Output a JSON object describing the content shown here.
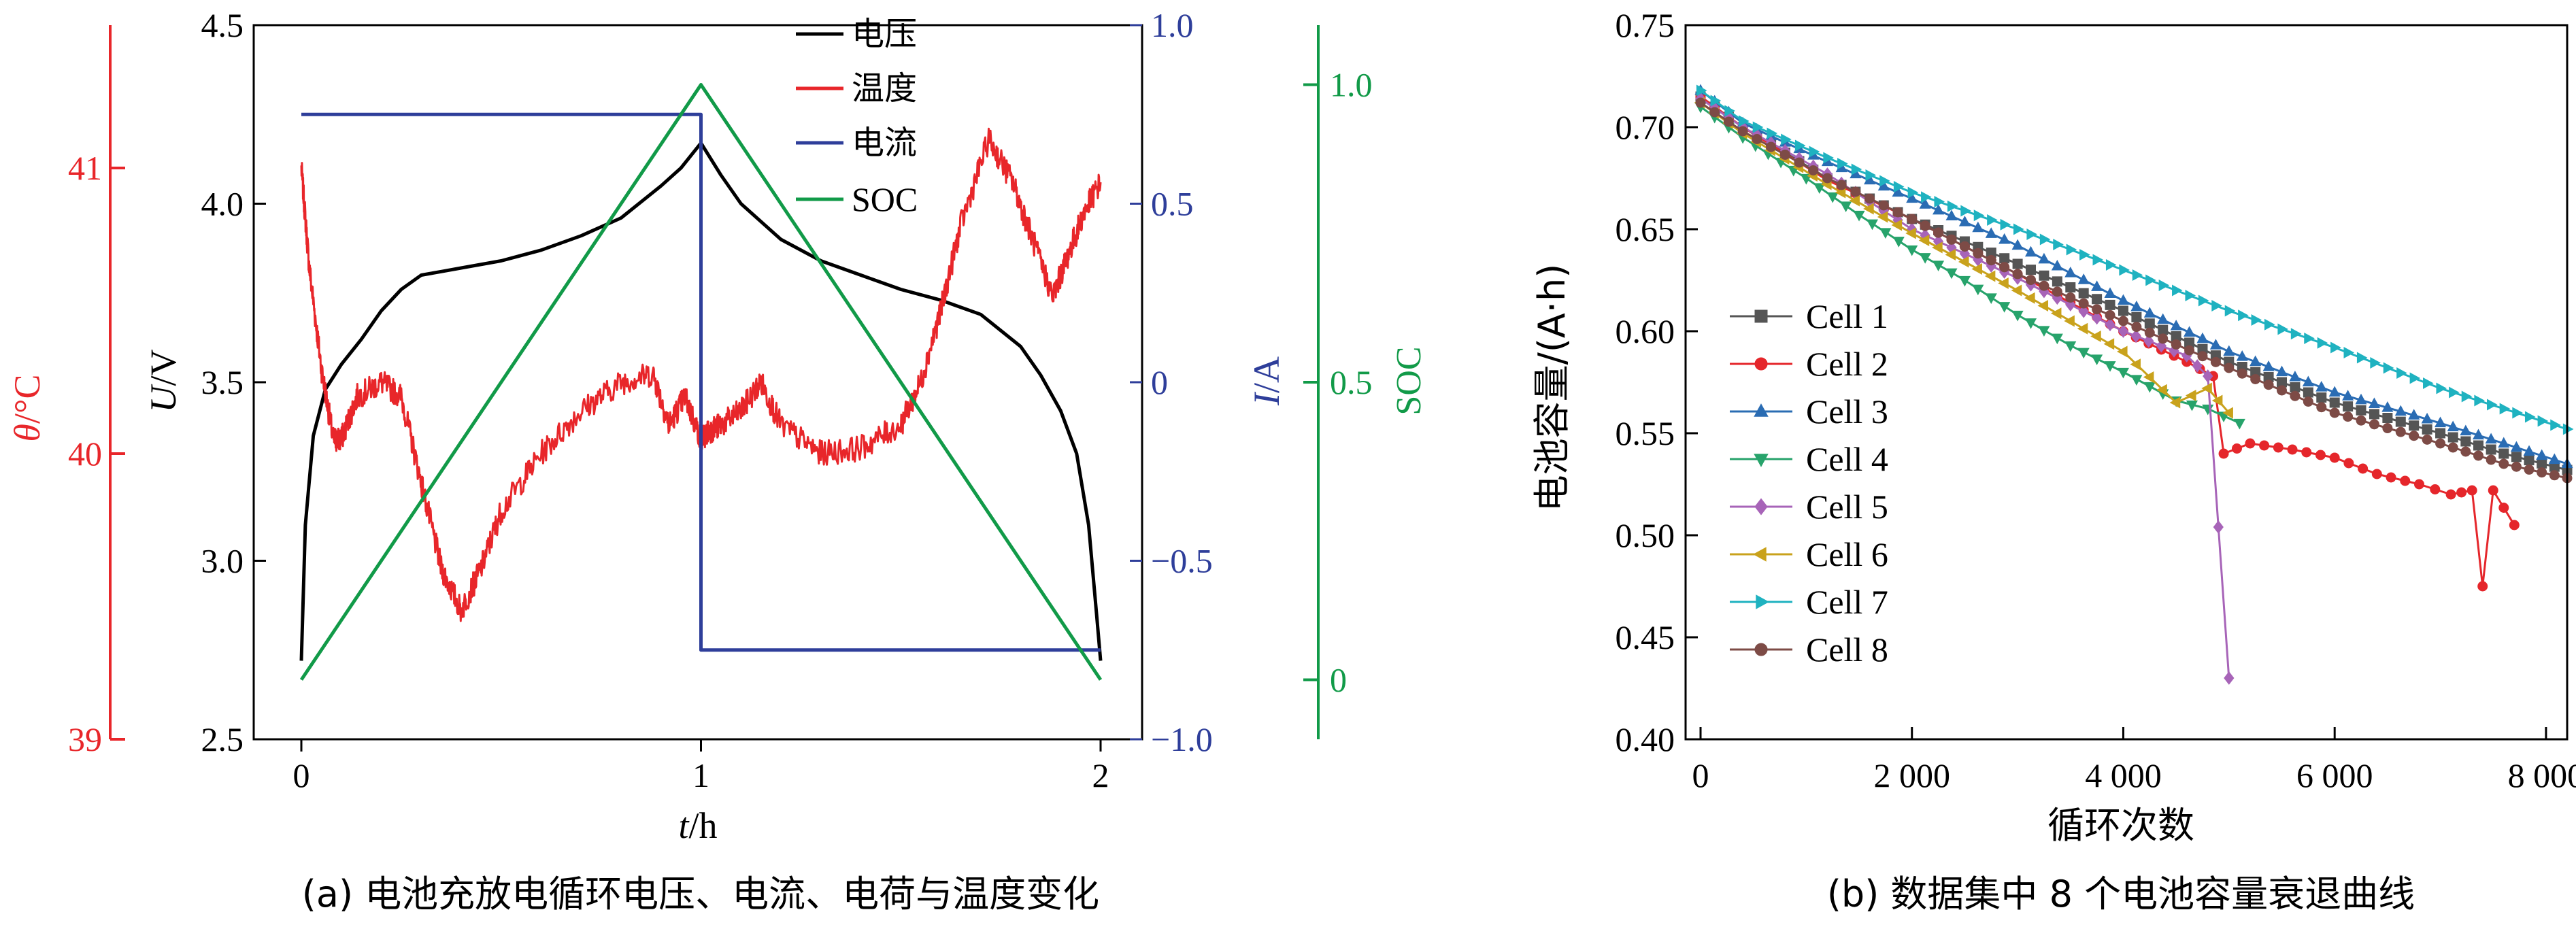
{
  "colors": {
    "voltage": "#000000",
    "temperature": "#e8262a",
    "current": "#2e3e9a",
    "soc": "#119a48",
    "cells": [
      "#555555",
      "#e5262b",
      "#2a6cb3",
      "#27a36b",
      "#a764b8",
      "#c9a21c",
      "#1fb2c0",
      "#7d4b46"
    ]
  },
  "panel_a": {
    "caption": "(a) 电池充放电循环电压、电流、电荷与温度变化",
    "xlabel_var": "t",
    "xlabel_unit": "/h",
    "x_ticks": [
      "0",
      "1",
      "2"
    ],
    "temp_axis": {
      "var": "θ",
      "unit": "/°C",
      "ticks": [
        "39",
        "40",
        "41"
      ]
    },
    "volt_axis": {
      "var": "U",
      "unit": "/V",
      "ticks": [
        "2.5",
        "3.0",
        "3.5",
        "4.0",
        "4.5"
      ]
    },
    "curr_axis": {
      "var": "I",
      "unit": "/A",
      "ticks": [
        "−1.0",
        "−0.5",
        "0",
        "0.5",
        "1.0"
      ]
    },
    "soc_axis": {
      "label": "SOC",
      "ticks": [
        "0",
        "0.5",
        "1.0"
      ]
    },
    "legend": [
      "电压",
      "温度",
      "电流",
      "SOC"
    ]
  },
  "panel_b": {
    "caption": "(b) 数据集中 8 个电池容量衰退曲线",
    "xlabel": "循环次数",
    "ylabel": "电池容量/(A·h)",
    "x_ticks": [
      "0",
      "2 000",
      "4 000",
      "6 000",
      "8 000"
    ],
    "y_ticks": [
      "0.40",
      "0.45",
      "0.50",
      "0.55",
      "0.60",
      "0.65",
      "0.70",
      "0.75"
    ]
  },
  "chart_data": [
    {
      "type": "line",
      "x_range": [
        0,
        2
      ],
      "series": [
        {
          "name": "电压",
          "axis": "U/V",
          "ylim": [
            2.5,
            4.5
          ],
          "x": [
            0,
            0.01,
            0.03,
            0.06,
            0.1,
            0.15,
            0.2,
            0.25,
            0.3,
            0.35,
            0.4,
            0.5,
            0.6,
            0.7,
            0.8,
            0.9,
            0.95,
            1.0,
            1.05,
            1.1,
            1.2,
            1.3,
            1.4,
            1.5,
            1.6,
            1.7,
            1.8,
            1.85,
            1.9,
            1.94,
            1.97,
            1.99,
            2.0
          ],
          "values": [
            2.72,
            3.1,
            3.35,
            3.48,
            3.55,
            3.62,
            3.7,
            3.76,
            3.8,
            3.81,
            3.82,
            3.84,
            3.87,
            3.91,
            3.96,
            4.05,
            4.1,
            4.17,
            4.08,
            4.0,
            3.9,
            3.84,
            3.8,
            3.76,
            3.73,
            3.69,
            3.6,
            3.52,
            3.42,
            3.3,
            3.1,
            2.85,
            2.72
          ]
        },
        {
          "name": "温度",
          "axis": "θ/°C",
          "ylim": [
            39,
            41.5
          ],
          "x": [
            0,
            0.02,
            0.05,
            0.08,
            0.1,
            0.14,
            0.2,
            0.25,
            0.3,
            0.35,
            0.4,
            0.45,
            0.5,
            0.6,
            0.7,
            0.8,
            0.88,
            0.92,
            0.96,
            1.0,
            1.02,
            1.05,
            1.1,
            1.15,
            1.2,
            1.3,
            1.4,
            1.5,
            1.55,
            1.6,
            1.65,
            1.72,
            1.78,
            1.83,
            1.88,
            1.92,
            1.96,
            2.0
          ],
          "values": [
            41.0,
            40.65,
            40.3,
            40.05,
            40.05,
            40.2,
            40.25,
            40.2,
            39.9,
            39.6,
            39.45,
            39.6,
            39.8,
            40.0,
            40.15,
            40.25,
            40.28,
            40.1,
            40.2,
            40.05,
            40.08,
            40.1,
            40.15,
            40.25,
            40.1,
            40.0,
            40.02,
            40.1,
            40.25,
            40.5,
            40.8,
            41.1,
            40.95,
            40.75,
            40.55,
            40.7,
            40.85,
            40.95
          ]
        },
        {
          "name": "电流",
          "axis": "I/A",
          "ylim": [
            -1.0,
            1.0
          ],
          "x": [
            0,
            1,
            1,
            2
          ],
          "values": [
            0.75,
            0.75,
            -0.75,
            -0.75
          ]
        },
        {
          "name": "SOC",
          "axis": "SOC",
          "ylim": [
            -0.1,
            1.1
          ],
          "x": [
            0,
            1,
            2
          ],
          "values": [
            0.0,
            1.0,
            0.0
          ]
        }
      ]
    },
    {
      "type": "line",
      "xlabel": "循环次数",
      "ylabel": "电池容量/(A·h)",
      "xlim": [
        0,
        8200
      ],
      "ylim": [
        0.4,
        0.75
      ],
      "legend_position": "left",
      "series": [
        {
          "name": "Cell 1",
          "marker": "square",
          "x": [
            0,
            400,
            1200,
            2000,
            3000,
            4000,
            5000,
            6000,
            7000,
            7600,
            8200
          ],
          "values": [
            0.715,
            0.7,
            0.675,
            0.655,
            0.633,
            0.61,
            0.585,
            0.565,
            0.55,
            0.54,
            0.532
          ]
        },
        {
          "name": "Cell 2",
          "marker": "circle",
          "x": [
            0,
            400,
            1200,
            2000,
            3000,
            4000,
            4600,
            4850,
            4950,
            5200,
            5600,
            6000,
            6400,
            6800,
            7100,
            7300,
            7400,
            7500,
            7700
          ],
          "values": [
            0.715,
            0.7,
            0.674,
            0.655,
            0.628,
            0.6,
            0.585,
            0.578,
            0.54,
            0.545,
            0.542,
            0.538,
            0.53,
            0.525,
            0.52,
            0.522,
            0.475,
            0.522,
            0.505
          ]
        },
        {
          "name": "Cell 3",
          "marker": "triangle-up",
          "x": [
            0,
            400,
            1200,
            2000,
            3000,
            4000,
            5000,
            6000,
            7000,
            7600,
            8200
          ],
          "values": [
            0.718,
            0.702,
            0.683,
            0.665,
            0.642,
            0.615,
            0.59,
            0.57,
            0.555,
            0.545,
            0.535
          ]
        },
        {
          "name": "Cell 4",
          "marker": "triangle-down",
          "x": [
            0,
            400,
            1000,
            1500,
            2000,
            2500,
            3000,
            3500,
            4000,
            4500,
            4800,
            5100
          ],
          "values": [
            0.71,
            0.695,
            0.675,
            0.657,
            0.64,
            0.625,
            0.608,
            0.593,
            0.58,
            0.566,
            0.562,
            0.555
          ]
        },
        {
          "name": "Cell 5",
          "marker": "diamond",
          "x": [
            0,
            400,
            1200,
            2000,
            3000,
            4000,
            4600,
            4800,
            5000
          ],
          "values": [
            0.714,
            0.7,
            0.677,
            0.65,
            0.626,
            0.6,
            0.588,
            0.578,
            0.43
          ]
        },
        {
          "name": "Cell 6",
          "marker": "triangle-left",
          "x": [
            0,
            400,
            1200,
            2000,
            3000,
            4000,
            4500,
            4800,
            5000
          ],
          "values": [
            0.712,
            0.697,
            0.672,
            0.648,
            0.62,
            0.59,
            0.565,
            0.572,
            0.56
          ]
        },
        {
          "name": "Cell 7",
          "marker": "triangle-right",
          "x": [
            0,
            400,
            1200,
            2000,
            3000,
            4000,
            5000,
            6000,
            7000,
            7600,
            8200
          ],
          "values": [
            0.718,
            0.703,
            0.685,
            0.668,
            0.65,
            0.63,
            0.61,
            0.592,
            0.572,
            0.562,
            0.552
          ]
        },
        {
          "name": "Cell 8",
          "marker": "circle",
          "x": [
            0,
            400,
            1200,
            2000,
            3000,
            4000,
            5000,
            6000,
            7000,
            7600,
            8200
          ],
          "values": [
            0.712,
            0.698,
            0.675,
            0.655,
            0.628,
            0.605,
            0.582,
            0.56,
            0.545,
            0.535,
            0.528
          ]
        }
      ]
    }
  ]
}
